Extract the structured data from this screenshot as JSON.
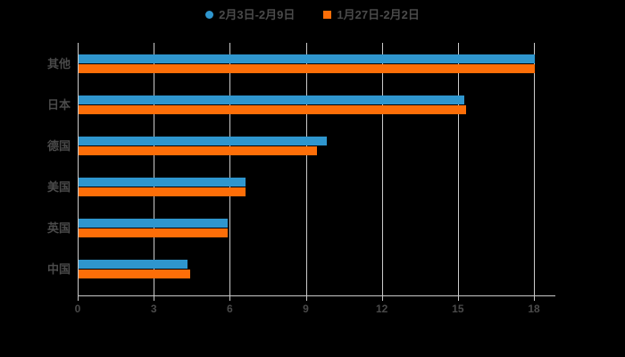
{
  "background": "#000000",
  "legend": {
    "items": [
      {
        "label": "2月3日-2月9日",
        "color": "#2f96ce",
        "marker": "circle"
      },
      {
        "label": "1月27日-2月2日",
        "color": "#fd6e08",
        "marker": "square"
      }
    ]
  },
  "chart_data": {
    "type": "bar",
    "orientation": "horizontal",
    "title": "",
    "xlabel": "",
    "ylabel": "",
    "categories": [
      "其他",
      "日本",
      "德国",
      "美国",
      "英国",
      "中国"
    ],
    "series": [
      {
        "name": "2月3日-2月9日",
        "color": "#2f96ce",
        "values": [
          18,
          15.2,
          9.8,
          6.6,
          5.9,
          4.3
        ]
      },
      {
        "name": "1月27日-2月2日",
        "color": "#fd6e08",
        "values": [
          18,
          15.3,
          9.4,
          6.6,
          5.9,
          4.4
        ]
      }
    ],
    "xlim": [
      0,
      18
    ],
    "x_ticks": [
      0,
      3,
      6,
      9,
      12,
      15,
      18
    ],
    "grid": true,
    "legend_position": "top",
    "colors": {
      "grid": "#cccccc",
      "axis": "#c9c9c9",
      "text": "#4a4a4a"
    }
  }
}
